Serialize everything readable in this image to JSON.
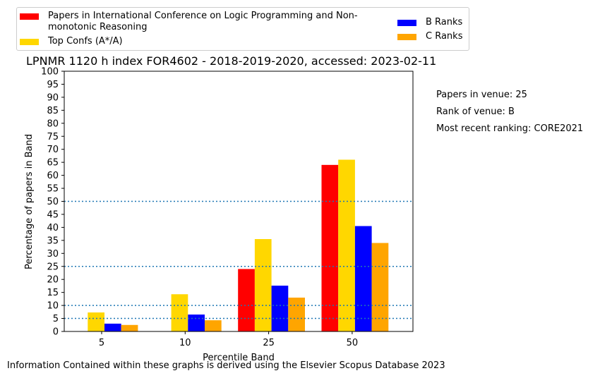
{
  "chart_data": {
    "type": "bar",
    "title": "LPNMR 1120 h index FOR4602 - 2018-2019-2020, accessed: 2023-02-11",
    "xlabel": "Percentile Band",
    "ylabel": "Percentage of papers in Band",
    "categories": [
      "5",
      "10",
      "25",
      "50"
    ],
    "ylim": [
      0,
      100
    ],
    "yticks": [
      "0",
      "5",
      "10",
      "15",
      "20",
      "25",
      "30",
      "35",
      "40",
      "45",
      "50",
      "55",
      "60",
      "65",
      "70",
      "75",
      "80",
      "85",
      "90",
      "95",
      "100"
    ],
    "series": [
      {
        "name": "Papers in International Conference on Logic Programming and Non-monotonic Reasoning",
        "color": "#ff0000",
        "values": [
          0,
          0,
          24,
          64
        ]
      },
      {
        "name": "Top Confs (A*/A)",
        "color": "#ffd700",
        "values": [
          7.3,
          14.3,
          35.5,
          66
        ]
      },
      {
        "name": "B Ranks",
        "color": "#0000ff",
        "values": [
          3,
          6.5,
          17.6,
          40.5
        ]
      },
      {
        "name": "C Ranks",
        "color": "#ffa500",
        "values": [
          2.5,
          4.3,
          13,
          34
        ]
      }
    ],
    "reference_lines": [
      5,
      10,
      25,
      50
    ],
    "grid": false,
    "legend_position": "top"
  },
  "legend": {
    "red_label_line1": "Papers in International Conference on Logic Programming and Non-",
    "red_label_line2": "monotonic Reasoning",
    "gold_label": "Top Confs (A*/A)",
    "blue_label": "B Ranks",
    "orange_label": "C Ranks"
  },
  "side_notes": {
    "papers": "Papers in venue: 25",
    "rank": "Rank of venue: B",
    "recent": "Most recent ranking: CORE2021"
  },
  "footer": "Information Contained within these graphs is derived using the Elsevier Scopus Database 2023"
}
